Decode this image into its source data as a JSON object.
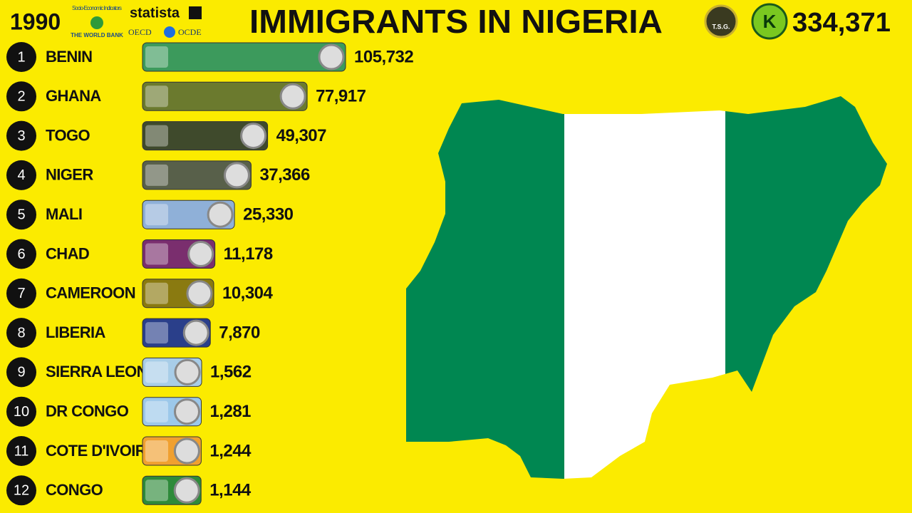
{
  "chart_data": {
    "type": "bar",
    "orientation": "horizontal",
    "title": "IMMIGRANTS IN NIGERIA",
    "year": "1990",
    "total": {
      "value": 334371,
      "label": "334,371"
    },
    "sources": [
      "Socio-Economic Indicators",
      "THE WORLD BANK",
      "statista",
      "OECD",
      "OCDE",
      "T.S.G.",
      "K"
    ],
    "ranks": [
      1,
      2,
      3,
      4,
      5,
      6,
      7,
      8,
      9,
      10,
      11,
      12
    ],
    "categories": [
      "BENIN",
      "GHANA",
      "TOGO",
      "NIGER",
      "MALI",
      "CHAD",
      "CAMEROON",
      "LIBERIA",
      "SIERRA LEONE",
      "DR CONGO",
      "COTE D'IVOIRE",
      "CONGO"
    ],
    "values": [
      105732,
      77917,
      49307,
      37366,
      25330,
      11178,
      10304,
      7870,
      1562,
      1281,
      1244,
      1144
    ],
    "value_labels": [
      "105,732",
      "77,917",
      "49,307",
      "37,366",
      "25,330",
      "11,178",
      "10,304",
      "7,870",
      "1,562",
      "1,281",
      "1,244",
      "1,144"
    ],
    "colors": [
      "#3c9a5c",
      "#6b7a2e",
      "#3f4a2c",
      "#58604a",
      "#8fb0d8",
      "#7a2e6e",
      "#8a7a10",
      "#2a3f8a",
      "#a8cde8",
      "#9cc8ea",
      "#f0a030",
      "#2e8a3a"
    ]
  }
}
